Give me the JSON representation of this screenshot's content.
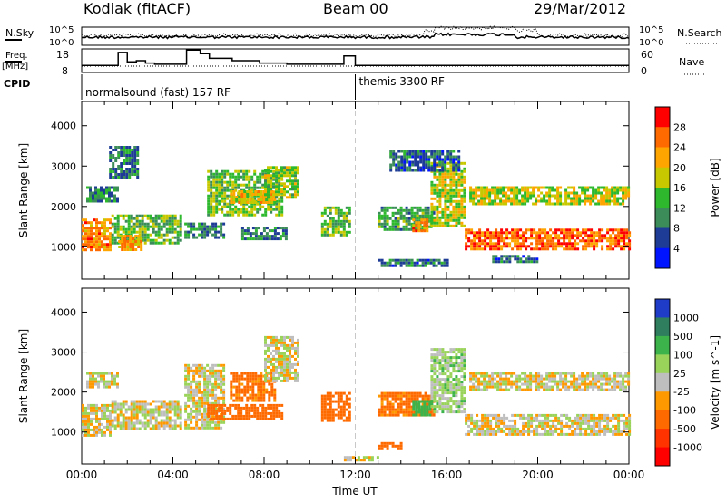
{
  "header": {
    "station": "Kodiak (fitACF)",
    "beam": "Beam 00",
    "date": "29/Mar/2012"
  },
  "chart_data": [
    {
      "panel": "noise",
      "type": "line",
      "left_label": "N.Sky",
      "right_label": "N.Search",
      "left_ticks": [
        "10^5",
        "10^0"
      ],
      "right_ticks": [
        "10^5",
        "10^0"
      ],
      "xlim": [
        0,
        24
      ]
    },
    {
      "panel": "frequency",
      "type": "line",
      "left_label": "Freq.",
      "left_unit": "[MHz]",
      "right_label": "Nave",
      "left_ticks": [
        "18",
        "8"
      ],
      "right_ticks": [
        "60",
        "0"
      ],
      "ylim": [
        8,
        18
      ],
      "x": [
        0,
        1.4,
        1.6,
        2.0,
        2.4,
        2.8,
        3.2,
        4.4,
        4.6,
        5.2,
        5.6,
        6.6,
        7.8,
        9.0,
        10.0,
        11.0,
        11.5,
        12.0,
        24.0
      ],
      "freq": [
        11,
        11,
        16.5,
        12.5,
        13.0,
        12.0,
        11.5,
        11.5,
        17.5,
        16.0,
        14.0,
        13.0,
        12.0,
        11.5,
        11.5,
        11.5,
        15.0,
        11.0,
        11.0
      ]
    },
    {
      "panel": "cpid",
      "label": "CPID",
      "segments": [
        {
          "start": 0,
          "text": "normalsound (fast) 157 RF"
        },
        {
          "start": 12,
          "text": "themis 3300 RF"
        }
      ]
    },
    {
      "panel": "power",
      "type": "heatmap",
      "ylabel": "Slant Range [km]",
      "yticks": [
        1000,
        2000,
        3000,
        4000
      ],
      "ylim": [
        200,
        4600
      ],
      "colorbar_label": "Power [dB]",
      "colorbar_ticks": [
        28,
        24,
        20,
        16,
        12,
        8,
        4
      ],
      "colorbar_colors": [
        "#ff0000",
        "#ff6a00",
        "#ffa500",
        "#c8c800",
        "#2eb82e",
        "#3c8c5a",
        "#1e3c96",
        "#0014ff"
      ],
      "regions": [
        {
          "x0": 0.0,
          "x1": 1.3,
          "y0": 900,
          "y1": 1700,
          "v": 24
        },
        {
          "x0": 1.3,
          "x1": 4.3,
          "y0": 1100,
          "y1": 1800,
          "v": 14
        },
        {
          "x0": 1.6,
          "x1": 2.6,
          "y0": 900,
          "y1": 1300,
          "v": 22
        },
        {
          "x0": 0.2,
          "x1": 1.6,
          "y0": 2100,
          "y1": 2500,
          "v": 10
        },
        {
          "x0": 1.2,
          "x1": 2.5,
          "y0": 2700,
          "y1": 3500,
          "v": 9
        },
        {
          "x0": 4.5,
          "x1": 6.2,
          "y0": 1200,
          "y1": 1600,
          "v": 10
        },
        {
          "x0": 5.5,
          "x1": 8.8,
          "y0": 1800,
          "y1": 2900,
          "v": 14
        },
        {
          "x0": 6.5,
          "x1": 8.5,
          "y0": 2100,
          "y1": 2400,
          "v": 20
        },
        {
          "x0": 8.0,
          "x1": 9.5,
          "y0": 2200,
          "y1": 3000,
          "v": 16
        },
        {
          "x0": 7.0,
          "x1": 9.0,
          "y0": 1200,
          "y1": 1500,
          "v": 10
        },
        {
          "x0": 10.5,
          "x1": 11.8,
          "y0": 1300,
          "y1": 2000,
          "v": 14
        },
        {
          "x0": 13.0,
          "x1": 15.5,
          "y0": 1400,
          "y1": 2000,
          "v": 12
        },
        {
          "x0": 14.5,
          "x1": 15.2,
          "y0": 1400,
          "y1": 1700,
          "v": 24
        },
        {
          "x0": 15.3,
          "x1": 16.8,
          "y0": 1500,
          "y1": 3100,
          "v": 18
        },
        {
          "x0": 16.8,
          "x1": 24.0,
          "y0": 950,
          "y1": 1450,
          "v": 26
        },
        {
          "x0": 17.0,
          "x1": 24.0,
          "y0": 2050,
          "y1": 2500,
          "v": 18
        },
        {
          "x0": 13.0,
          "x1": 16.0,
          "y0": 500,
          "y1": 700,
          "v": 8
        },
        {
          "x0": 18.0,
          "x1": 20.0,
          "y0": 600,
          "y1": 800,
          "v": 8
        },
        {
          "x0": 13.5,
          "x1": 16.5,
          "y0": 2900,
          "y1": 3400,
          "v": 8
        }
      ]
    },
    {
      "panel": "velocity",
      "type": "heatmap",
      "ylabel": "Slant Range [km]",
      "yticks": [
        1000,
        2000,
        3000,
        4000
      ],
      "ylim": [
        200,
        4600
      ],
      "xlabel": "Time UT",
      "xticks": [
        "00:00",
        "04:00",
        "08:00",
        "12:00",
        "16:00",
        "20:00",
        "00:00"
      ],
      "xlim": [
        0,
        24
      ],
      "colorbar_label": "Velocity [m s^-1]",
      "colorbar_ticks": [
        1000,
        500,
        100,
        25,
        -25,
        -100,
        -500,
        -1000
      ],
      "colorbar_colors": [
        "#1e3cc8",
        "#2f7f5f",
        "#3cb44b",
        "#9ad35a",
        "#bebebe",
        "#ff9900",
        "#ff6a00",
        "#ff3300",
        "#ff0000"
      ],
      "regions": [
        {
          "x0": 0.0,
          "x1": 1.3,
          "y0": 900,
          "y1": 1700,
          "v": 0
        },
        {
          "x0": 1.3,
          "x1": 4.3,
          "y0": 1100,
          "y1": 1800,
          "v": 0
        },
        {
          "x0": 0.2,
          "x1": 1.6,
          "y0": 2100,
          "y1": 2500,
          "v": 0
        },
        {
          "x0": 4.5,
          "x1": 6.2,
          "y0": 1100,
          "y1": 2700,
          "v": 0
        },
        {
          "x0": 5.5,
          "x1": 8.8,
          "y0": 1300,
          "y1": 1700,
          "v": -300
        },
        {
          "x0": 6.5,
          "x1": 8.5,
          "y0": 1800,
          "y1": 2500,
          "v": -150
        },
        {
          "x0": 8.0,
          "x1": 9.5,
          "y0": 2300,
          "y1": 3400,
          "v": 0
        },
        {
          "x0": 10.5,
          "x1": 11.8,
          "y0": 1300,
          "y1": 2000,
          "v": -200
        },
        {
          "x0": 13.0,
          "x1": 15.5,
          "y0": 1400,
          "y1": 2000,
          "v": -150
        },
        {
          "x0": 14.5,
          "x1": 15.3,
          "y0": 1400,
          "y1": 1800,
          "v": 200
        },
        {
          "x0": 15.3,
          "x1": 16.8,
          "y0": 1500,
          "y1": 3100,
          "v": 50
        },
        {
          "x0": 16.8,
          "x1": 24.0,
          "y0": 950,
          "y1": 1450,
          "v": 0
        },
        {
          "x0": 17.0,
          "x1": 24.0,
          "y0": 2050,
          "y1": 2500,
          "v": 0
        },
        {
          "x0": 13.0,
          "x1": 14.0,
          "y0": 550,
          "y1": 750,
          "v": -200
        },
        {
          "x0": 11.5,
          "x1": 13.0,
          "y0": 300,
          "y1": 400,
          "v": 0
        }
      ]
    }
  ]
}
